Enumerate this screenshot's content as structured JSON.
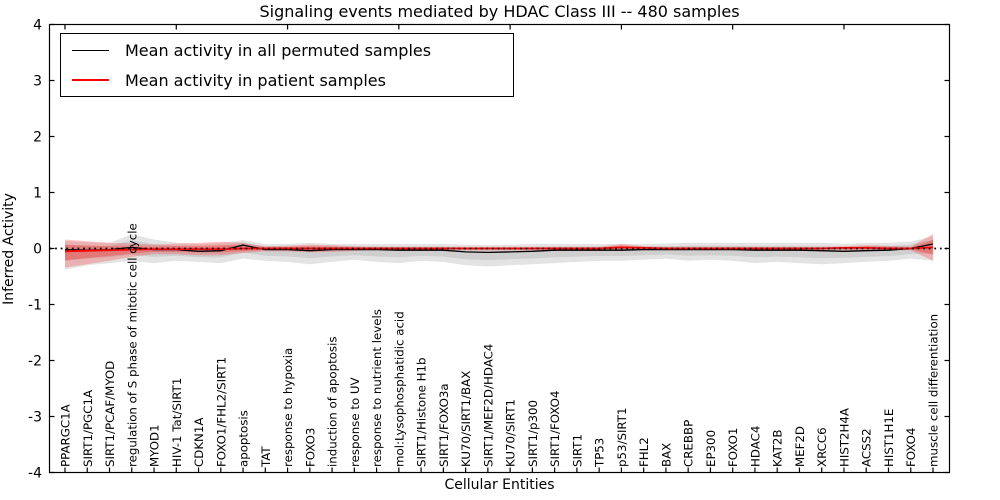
{
  "chart_data": {
    "type": "line",
    "title": "Signaling events mediated by HDAC Class III -- 480 samples",
    "xlabel": "Cellular Entities",
    "ylabel": "Inferred Activity",
    "ylim": [
      -4,
      4
    ],
    "yticks": [
      -4,
      -3,
      -2,
      -1,
      0,
      1,
      2,
      3,
      4
    ],
    "grid": false,
    "legend_position": "upper left",
    "categories": [
      "PPARGC1A",
      "SIRT1/PGC1A",
      "SIRT1/PCAF/MYOD",
      "regulation of S phase of mitotic cell cycle",
      "MYOD1",
      "HIV-1 Tat/SIRT1",
      "CDKN1A",
      "FOXO1/FHL2/SIRT1",
      "apoptosis",
      "TAT",
      "response to hypoxia",
      "FOXO3",
      "induction of apoptosis",
      "response to UV",
      "response to nutrient levels",
      "mol:Lysophosphatidic acid",
      "SIRT1/Histone H1b",
      "SIRT1/FOXO3a",
      "KU70/SIRT1/BAX",
      "SIRT1/MEF2D/HDAC4",
      "KU70/SIRT1",
      "SIRT1/p300",
      "SIRT1/FOXO4",
      "SIRT1",
      "TP53",
      "p53/SIRT1",
      "FHL2",
      "BAX",
      "CREBBP",
      "EP300",
      "FOXO1",
      "HDAC4",
      "KAT2B",
      "MEF2D",
      "XRCC6",
      "HIST2H4A",
      "ACSS2",
      "HIST1H1E",
      "FOXO4",
      "muscle cell differentiation"
    ],
    "series": [
      {
        "name": "Mean activity in all permuted samples",
        "color": "#000000",
        "values": [
          -0.02,
          -0.03,
          -0.02,
          0.02,
          -0.02,
          -0.02,
          -0.05,
          -0.04,
          0.06,
          -0.02,
          -0.02,
          -0.04,
          -0.02,
          -0.02,
          -0.02,
          -0.03,
          -0.03,
          -0.03,
          -0.06,
          -0.07,
          -0.06,
          -0.05,
          -0.03,
          -0.03,
          -0.03,
          -0.03,
          -0.02,
          -0.02,
          -0.02,
          -0.02,
          -0.02,
          -0.03,
          -0.03,
          -0.03,
          -0.04,
          -0.05,
          -0.04,
          -0.03,
          0.0,
          0.08
        ],
        "band": {
          "upper": [
            0.14,
            0.11,
            0.1,
            0.25,
            0.16,
            0.1,
            0.08,
            0.1,
            0.15,
            0.08,
            0.08,
            0.1,
            0.08,
            0.08,
            0.08,
            0.08,
            0.08,
            0.08,
            0.07,
            0.06,
            0.07,
            0.08,
            0.08,
            0.08,
            0.08,
            0.08,
            0.08,
            0.09,
            0.1,
            0.1,
            0.1,
            0.1,
            0.1,
            0.1,
            0.1,
            0.08,
            0.1,
            0.1,
            0.12,
            0.22
          ],
          "lower": [
            -0.38,
            -0.3,
            -0.26,
            -0.22,
            -0.26,
            -0.22,
            -0.24,
            -0.26,
            -0.18,
            -0.22,
            -0.24,
            -0.28,
            -0.24,
            -0.2,
            -0.24,
            -0.26,
            -0.22,
            -0.24,
            -0.3,
            -0.32,
            -0.3,
            -0.28,
            -0.26,
            -0.24,
            -0.22,
            -0.22,
            -0.2,
            -0.18,
            -0.22,
            -0.2,
            -0.22,
            -0.26,
            -0.24,
            -0.26,
            -0.28,
            -0.26,
            -0.24,
            -0.22,
            -0.18,
            -0.22
          ],
          "color": "#999999"
        }
      },
      {
        "name": "Mean activity in patient samples",
        "color": "#ff0000",
        "values": [
          -0.05,
          -0.04,
          -0.03,
          -0.02,
          -0.01,
          -0.01,
          -0.01,
          -0.01,
          0.0,
          0.0,
          0.0,
          0.0,
          0.0,
          0.0,
          0.0,
          0.0,
          0.0,
          0.0,
          0.0,
          0.0,
          0.0,
          0.0,
          0.0,
          0.0,
          0.0,
          0.02,
          0.01,
          0.0,
          0.0,
          0.0,
          0.0,
          0.0,
          0.0,
          0.0,
          0.0,
          0.01,
          0.01,
          0.0,
          0.0,
          0.02
        ],
        "band": {
          "upper": [
            0.16,
            0.13,
            0.1,
            0.09,
            0.07,
            0.09,
            0.1,
            0.12,
            0.1,
            0.04,
            0.05,
            0.07,
            0.06,
            0.04,
            0.03,
            0.03,
            0.03,
            0.03,
            0.03,
            0.03,
            0.03,
            0.03,
            0.03,
            0.03,
            0.03,
            0.08,
            0.04,
            0.03,
            0.03,
            0.03,
            0.03,
            0.03,
            0.03,
            0.03,
            0.03,
            0.04,
            0.06,
            0.05,
            0.03,
            0.26
          ],
          "lower": [
            -0.34,
            -0.28,
            -0.22,
            -0.15,
            -0.1,
            -0.1,
            -0.12,
            -0.12,
            -0.08,
            -0.05,
            -0.05,
            -0.07,
            -0.06,
            -0.04,
            -0.03,
            -0.03,
            -0.03,
            -0.03,
            -0.03,
            -0.03,
            -0.03,
            -0.03,
            -0.03,
            -0.03,
            -0.03,
            -0.04,
            -0.03,
            -0.03,
            -0.03,
            -0.03,
            -0.03,
            -0.03,
            -0.03,
            -0.03,
            -0.03,
            -0.03,
            -0.04,
            -0.03,
            -0.03,
            -0.22
          ],
          "color": "#ff0000"
        }
      }
    ],
    "zero_line": {
      "value": 0,
      "style": "dotted",
      "color": "#000000"
    }
  }
}
